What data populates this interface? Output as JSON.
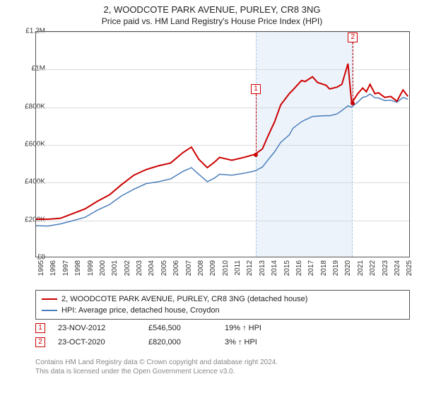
{
  "title": "2, WOODCOTE PARK AVENUE, PURLEY, CR8 3NG",
  "subtitle": "Price paid vs. HM Land Registry's House Price Index (HPI)",
  "chart": {
    "type": "line",
    "background_color": "#ffffff",
    "grid_color": "#d9d9d9",
    "border_color": "#555555",
    "y_axis": {
      "min": 0,
      "max": 1200000,
      "step": 200000,
      "labels": [
        "£0",
        "£200K",
        "£400K",
        "£600K",
        "£800K",
        "£1M",
        "£1.2M"
      ],
      "label_fontsize": 10
    },
    "x_axis": {
      "min": 1995,
      "max": 2025.5,
      "ticks": [
        1995,
        1996,
        1997,
        1998,
        1999,
        2000,
        2001,
        2002,
        2003,
        2004,
        2005,
        2006,
        2007,
        2008,
        2009,
        2010,
        2011,
        2012,
        2013,
        2014,
        2015,
        2016,
        2017,
        2018,
        2019,
        2020,
        2021,
        2022,
        2023,
        2024,
        2025
      ],
      "label_fontsize": 10
    },
    "shaded_band": {
      "x_from": 2012.9,
      "x_to": 2020.8,
      "fill": "#ecf3fb",
      "border": "#aac4e0"
    },
    "series": [
      {
        "name": "property",
        "label": "2, WOODCOTE PARK AVENUE, PURLEY, CR8 3NG (detached house)",
        "color": "#cc0000",
        "line_width": 2,
        "points": [
          [
            1995,
            200000
          ],
          [
            1996,
            200000
          ],
          [
            1997,
            205000
          ],
          [
            1998,
            230000
          ],
          [
            1999,
            255000
          ],
          [
            2000,
            295000
          ],
          [
            2001,
            330000
          ],
          [
            2002,
            385000
          ],
          [
            2003,
            435000
          ],
          [
            2004,
            465000
          ],
          [
            2005,
            485000
          ],
          [
            2006,
            500000
          ],
          [
            2007,
            555000
          ],
          [
            2007.7,
            585000
          ],
          [
            2008.3,
            520000
          ],
          [
            2009,
            475000
          ],
          [
            2009.6,
            505000
          ],
          [
            2010,
            530000
          ],
          [
            2011,
            515000
          ],
          [
            2012,
            530000
          ],
          [
            2012.9,
            546500
          ],
          [
            2013.5,
            575000
          ],
          [
            2014,
            650000
          ],
          [
            2014.5,
            720000
          ],
          [
            2015,
            810000
          ],
          [
            2015.7,
            870000
          ],
          [
            2016,
            890000
          ],
          [
            2016.7,
            940000
          ],
          [
            2017,
            935000
          ],
          [
            2017.6,
            960000
          ],
          [
            2018,
            930000
          ],
          [
            2018.7,
            915000
          ],
          [
            2019,
            895000
          ],
          [
            2019.6,
            905000
          ],
          [
            2020,
            920000
          ],
          [
            2020.5,
            1030000
          ],
          [
            2020.8,
            820000
          ],
          [
            2021.3,
            870000
          ],
          [
            2021.7,
            900000
          ],
          [
            2022,
            880000
          ],
          [
            2022.3,
            920000
          ],
          [
            2022.7,
            870000
          ],
          [
            2023,
            875000
          ],
          [
            2023.5,
            850000
          ],
          [
            2024,
            855000
          ],
          [
            2024.5,
            830000
          ],
          [
            2025,
            890000
          ],
          [
            2025.4,
            855000
          ]
        ]
      },
      {
        "name": "hpi",
        "label": "HPI: Average price, detached house, Croydon",
        "color": "#4a7ebb",
        "line_width": 1.5,
        "points": [
          [
            1995,
            165000
          ],
          [
            1996,
            164000
          ],
          [
            1997,
            175000
          ],
          [
            1998,
            192000
          ],
          [
            1999,
            210000
          ],
          [
            2000,
            248000
          ],
          [
            2001,
            278000
          ],
          [
            2002,
            325000
          ],
          [
            2003,
            360000
          ],
          [
            2004,
            390000
          ],
          [
            2005,
            400000
          ],
          [
            2006,
            415000
          ],
          [
            2007,
            455000
          ],
          [
            2007.7,
            475000
          ],
          [
            2008.3,
            440000
          ],
          [
            2009,
            400000
          ],
          [
            2009.6,
            420000
          ],
          [
            2010,
            440000
          ],
          [
            2011,
            435000
          ],
          [
            2012,
            445000
          ],
          [
            2012.9,
            458000
          ],
          [
            2013.5,
            478000
          ],
          [
            2014,
            520000
          ],
          [
            2014.5,
            560000
          ],
          [
            2015,
            610000
          ],
          [
            2015.7,
            650000
          ],
          [
            2016,
            685000
          ],
          [
            2016.7,
            720000
          ],
          [
            2017,
            730000
          ],
          [
            2017.6,
            748000
          ],
          [
            2018,
            750000
          ],
          [
            2018.7,
            753000
          ],
          [
            2019,
            752000
          ],
          [
            2019.6,
            762000
          ],
          [
            2020,
            780000
          ],
          [
            2020.5,
            805000
          ],
          [
            2020.8,
            798000
          ],
          [
            2021.3,
            825000
          ],
          [
            2021.7,
            850000
          ],
          [
            2022,
            855000
          ],
          [
            2022.3,
            868000
          ],
          [
            2022.7,
            848000
          ],
          [
            2023,
            847000
          ],
          [
            2023.5,
            833000
          ],
          [
            2024,
            835000
          ],
          [
            2024.5,
            824000
          ],
          [
            2025,
            850000
          ],
          [
            2025.4,
            840000
          ]
        ]
      }
    ],
    "markers": [
      {
        "id": "1",
        "x": 2012.9,
        "y": 546500,
        "box_above_y": 100
      },
      {
        "id": "2",
        "x": 2020.8,
        "y": 820000,
        "box_above_y": 100
      }
    ]
  },
  "sales": [
    {
      "id": "1",
      "date": "23-NOV-2012",
      "price": "£546,500",
      "hpi_delta": "19% ↑ HPI"
    },
    {
      "id": "2",
      "date": "23-OCT-2020",
      "price": "£820,000",
      "hpi_delta": "3% ↑ HPI"
    }
  ],
  "attribution": {
    "line1": "Contains HM Land Registry data © Crown copyright and database right 2024.",
    "line2": "This data is licensed under the Open Government Licence v3.0."
  }
}
